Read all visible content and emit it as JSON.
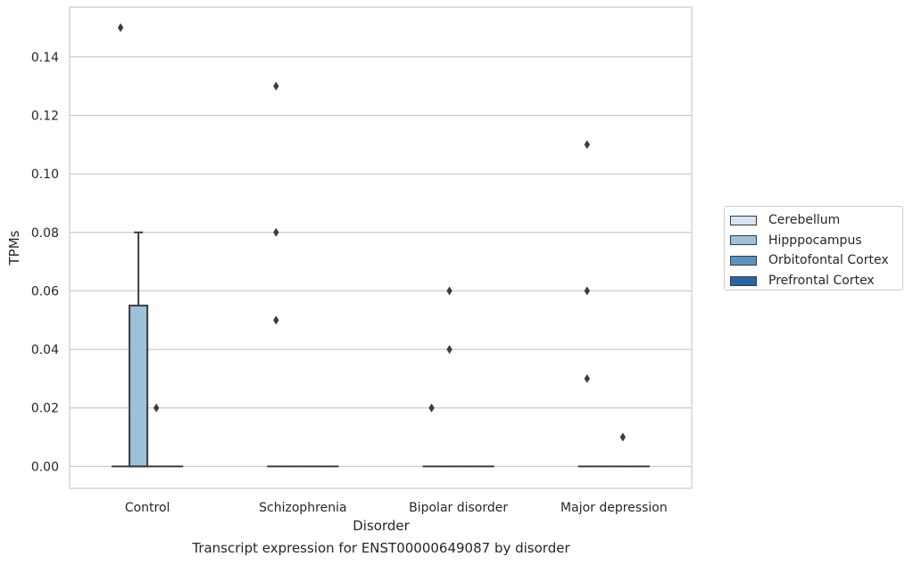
{
  "chart_data": {
    "type": "box",
    "xlabel": "Disorder",
    "ylabel": "TPMs",
    "caption": "Transcript expression for ENST00000649087 by disorder",
    "categories": [
      "Control",
      "Schizophrenia",
      "Bipolar disorder",
      "Major depression"
    ],
    "ylim": [
      -0.0075,
      0.157
    ],
    "yticks": [
      0.0,
      0.02,
      0.04,
      0.06,
      0.08,
      0.1,
      0.12,
      0.14
    ],
    "ytick_labels": [
      "0.00",
      "0.02",
      "0.04",
      "0.06",
      "0.08",
      "0.10",
      "0.12",
      "0.14"
    ],
    "grid": "horizontal",
    "legend_position": "right",
    "series": [
      {
        "name": "Cerebellum",
        "color": "#d6e4f0",
        "boxes": [
          {
            "q1": 0,
            "median": 0,
            "q3": 0,
            "whisker_low": 0,
            "whisker_high": 0,
            "outliers": [
              0.15
            ]
          },
          {
            "q1": 0,
            "median": 0,
            "q3": 0,
            "whisker_low": 0,
            "whisker_high": 0,
            "outliers": [
              0.13,
              0.08,
              0.05
            ]
          },
          {
            "q1": 0,
            "median": 0,
            "q3": 0,
            "whisker_low": 0,
            "whisker_high": 0,
            "outliers": [
              0.02
            ]
          },
          {
            "q1": 0,
            "median": 0,
            "q3": 0,
            "whisker_low": 0,
            "whisker_high": 0,
            "outliers": [
              0.11,
              0.06,
              0.03
            ]
          }
        ]
      },
      {
        "name": "Hipppocampus",
        "color": "#9ec1da",
        "boxes": [
          {
            "q1": 0,
            "median": 0,
            "q3": 0.055,
            "whisker_low": 0,
            "whisker_high": 0.08,
            "outliers": []
          },
          {
            "q1": 0,
            "median": 0,
            "q3": 0,
            "whisker_low": 0,
            "whisker_high": 0,
            "outliers": []
          },
          {
            "q1": 0,
            "median": 0,
            "q3": 0,
            "whisker_low": 0,
            "whisker_high": 0,
            "outliers": [
              0.06,
              0.04
            ]
          },
          {
            "q1": 0,
            "median": 0,
            "q3": 0,
            "whisker_low": 0,
            "whisker_high": 0,
            "outliers": []
          }
        ]
      },
      {
        "name": "Orbitofontal Cortex",
        "color": "#5a94c0",
        "boxes": [
          {
            "q1": 0,
            "median": 0,
            "q3": 0,
            "whisker_low": 0,
            "whisker_high": 0,
            "outliers": [
              0.02
            ]
          },
          {
            "q1": 0,
            "median": 0,
            "q3": 0,
            "whisker_low": 0,
            "whisker_high": 0,
            "outliers": []
          },
          {
            "q1": 0,
            "median": 0,
            "q3": 0,
            "whisker_low": 0,
            "whisker_high": 0,
            "outliers": []
          },
          {
            "q1": 0,
            "median": 0,
            "q3": 0,
            "whisker_low": 0,
            "whisker_high": 0,
            "outliers": [
              0.01
            ]
          }
        ]
      },
      {
        "name": "Prefrontal Cortex",
        "color": "#2a65a3",
        "boxes": [
          {
            "q1": 0,
            "median": 0,
            "q3": 0,
            "whisker_low": 0,
            "whisker_high": 0,
            "outliers": []
          },
          {
            "q1": 0,
            "median": 0,
            "q3": 0,
            "whisker_low": 0,
            "whisker_high": 0,
            "outliers": []
          },
          {
            "q1": 0,
            "median": 0,
            "q3": 0,
            "whisker_low": 0,
            "whisker_high": 0,
            "outliers": []
          },
          {
            "q1": 0,
            "median": 0,
            "q3": 0,
            "whisker_low": 0,
            "whisker_high": 0,
            "outliers": []
          }
        ]
      }
    ]
  }
}
